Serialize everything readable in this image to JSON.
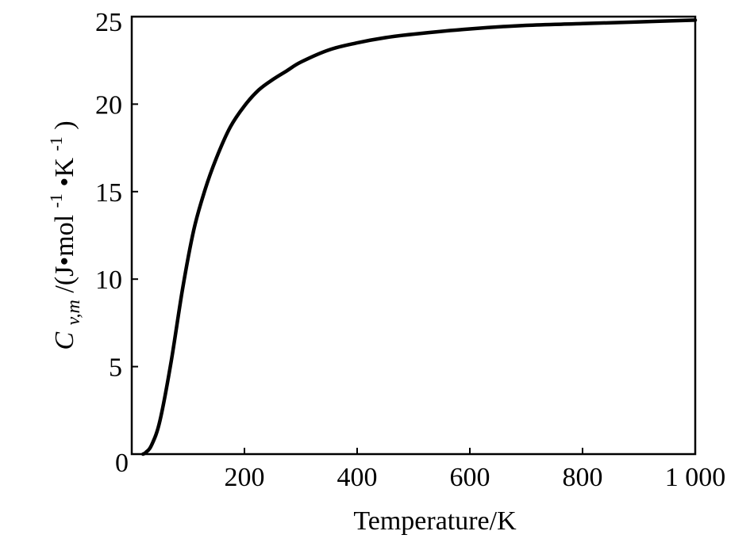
{
  "chart_data": {
    "type": "line",
    "title": "",
    "xlabel": "Temperature/K",
    "ylabel": {
      "symbol": "C",
      "subscript": "v,m",
      "rest": "/(J•mol",
      "exp1": "-1",
      "mid": "•K",
      "exp2": "-1",
      "close": ")"
    },
    "xlim": [
      0,
      1000
    ],
    "ylim": [
      0,
      25
    ],
    "xticks": [
      200,
      400,
      600,
      800,
      1000
    ],
    "xtick_labels": [
      "200",
      "400",
      "600",
      "800",
      "1 000"
    ],
    "yticks": [
      0,
      5,
      10,
      15,
      20,
      25
    ],
    "ytick_labels": [
      "0",
      "5",
      "10",
      "15",
      "20",
      "25"
    ],
    "grid": false,
    "series": [
      {
        "color": "#000000",
        "x": [
          20,
          25,
          35,
          50,
          70,
          90,
          110,
          130,
          150,
          175,
          200,
          225,
          250,
          275,
          300,
          350,
          400,
          450,
          500,
          600,
          700,
          800,
          900,
          1000
        ],
        "y": [
          0.0,
          0.1,
          0.5,
          1.9,
          5.3,
          9.4,
          12.8,
          15.1,
          16.9,
          18.7,
          19.9,
          20.8,
          21.4,
          21.9,
          22.4,
          23.1,
          23.5,
          23.8,
          24.0,
          24.3,
          24.5,
          24.6,
          24.7,
          24.8
        ]
      }
    ]
  }
}
